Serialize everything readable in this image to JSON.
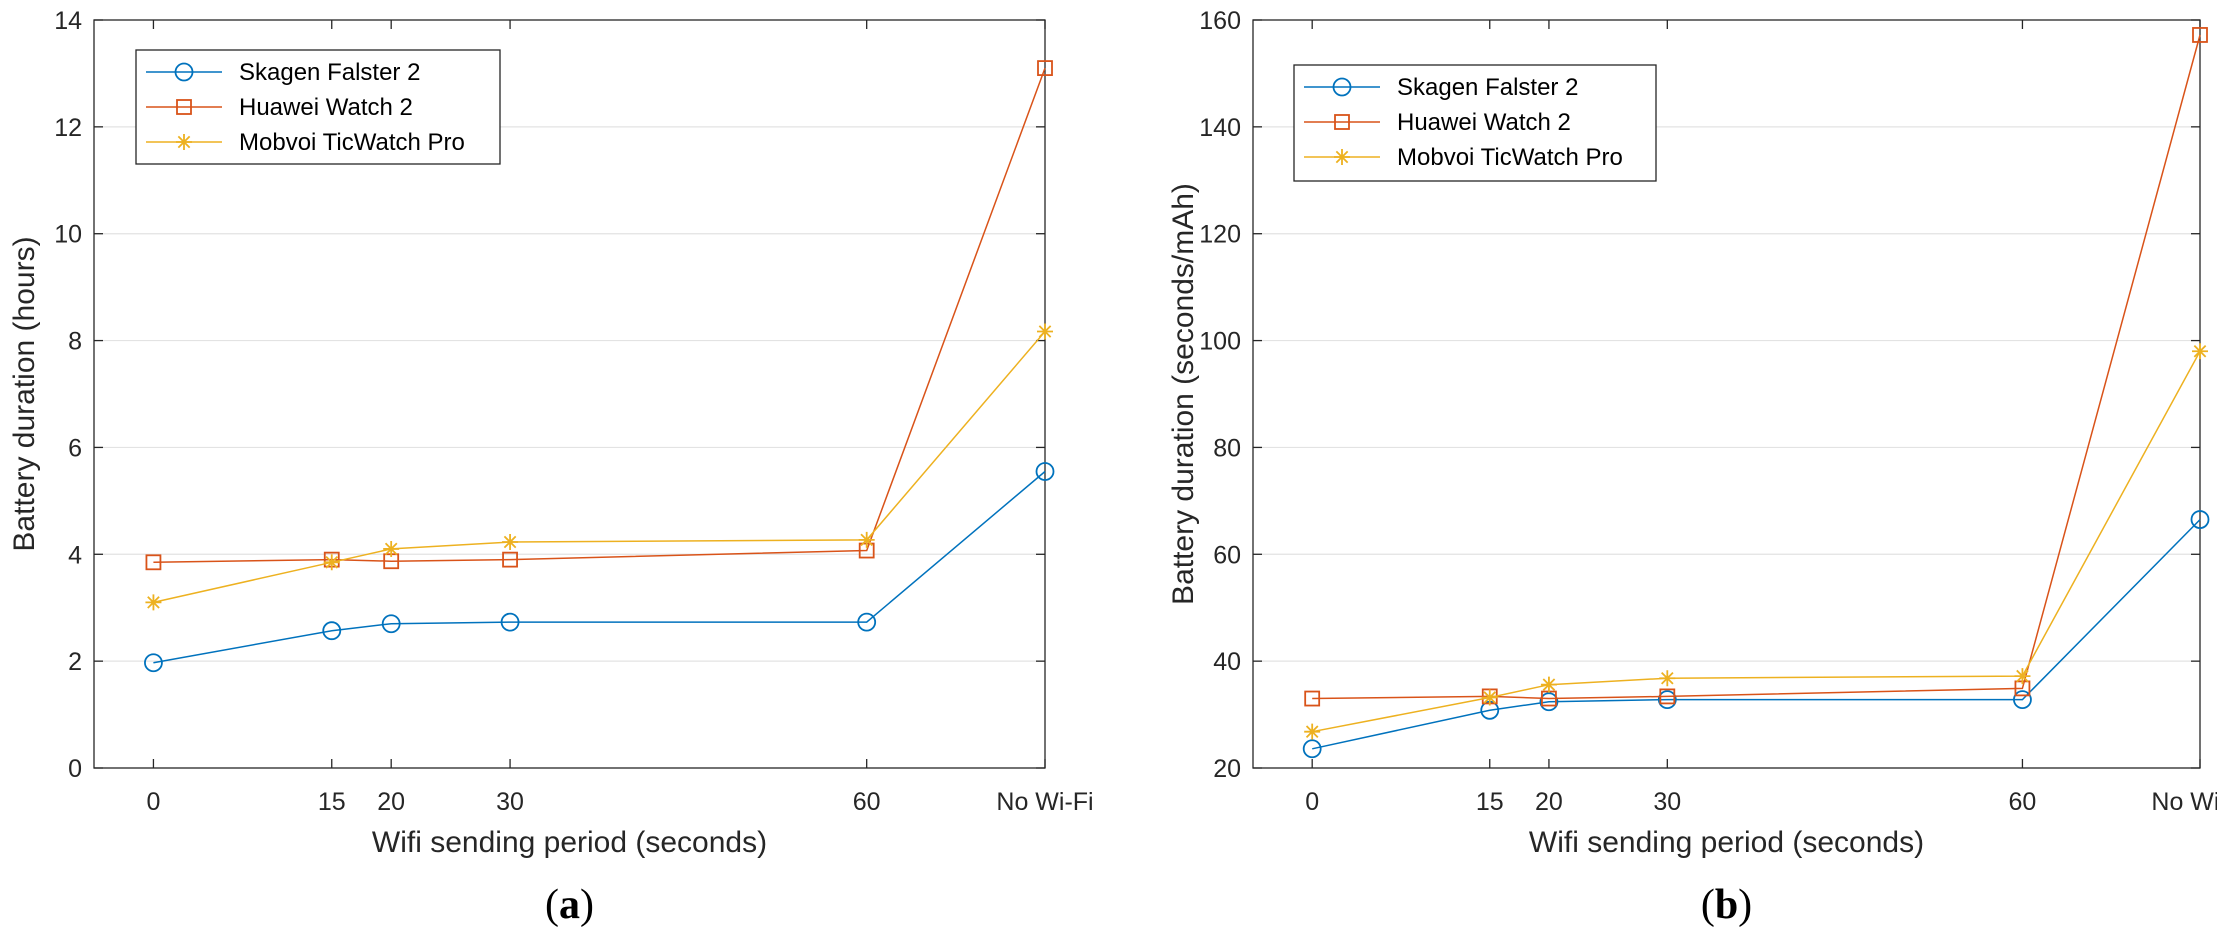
{
  "chart_data": [
    {
      "type": "line",
      "panel_label": {
        "open": "(",
        "letter": "a",
        "close": ")"
      },
      "title": "",
      "xlabel": "Wifi sending period (seconds)",
      "ylabel": "Battery duration (hours)",
      "x": [
        0,
        15,
        20,
        30,
        60,
        75
      ],
      "xtick_values": [
        0,
        15,
        20,
        30,
        60,
        75
      ],
      "xtick_labels": [
        "0",
        "15",
        "20",
        "30",
        "60",
        "No Wi-Fi"
      ],
      "xlim": [
        -5,
        75
      ],
      "ylim": [
        0,
        14
      ],
      "yticks": [
        0,
        2,
        4,
        6,
        8,
        10,
        12,
        14
      ],
      "ytick_labels": [
        "0",
        "2",
        "4",
        "6",
        "8",
        "10",
        "12",
        "14"
      ],
      "grid": true,
      "legend_position": "top-left",
      "series": [
        {
          "name": "Skagen Falster 2",
          "color": "#0072BD",
          "marker": "circle",
          "values": [
            1.97,
            2.57,
            2.7,
            2.73,
            2.73,
            5.55
          ]
        },
        {
          "name": "Huawei Watch 2",
          "color": "#D95319",
          "marker": "square",
          "values": [
            3.85,
            3.9,
            3.87,
            3.9,
            4.07,
            13.1
          ]
        },
        {
          "name": "Mobvoi TicWatch Pro",
          "color": "#EDB120",
          "marker": "asterisk",
          "values": [
            3.1,
            3.85,
            4.1,
            4.23,
            4.27,
            8.17
          ]
        }
      ]
    },
    {
      "type": "line",
      "panel_label": {
        "open": "(",
        "letter": "b",
        "close": ")"
      },
      "title": "",
      "xlabel": "Wifi sending period (seconds)",
      "ylabel": "Battery duration (seconds/mAh)",
      "x": [
        0,
        15,
        20,
        30,
        60,
        75
      ],
      "xtick_values": [
        0,
        15,
        20,
        30,
        60,
        75
      ],
      "xtick_labels": [
        "0",
        "15",
        "20",
        "30",
        "60",
        "No Wi-Fi"
      ],
      "xlim": [
        -5,
        75
      ],
      "ylim": [
        20,
        160
      ],
      "yticks": [
        20,
        40,
        60,
        80,
        100,
        120,
        140,
        160
      ],
      "ytick_labels": [
        "20",
        "40",
        "60",
        "80",
        "100",
        "120",
        "140",
        "160"
      ],
      "grid": true,
      "legend_position": "top-left",
      "series": [
        {
          "name": "Skagen Falster 2",
          "color": "#0072BD",
          "marker": "circle",
          "values": [
            23.6,
            30.8,
            32.4,
            32.8,
            32.8,
            66.5
          ]
        },
        {
          "name": "Huawei Watch 2",
          "color": "#D95319",
          "marker": "square",
          "values": [
            33.0,
            33.4,
            33.0,
            33.4,
            34.9,
            157.2
          ]
        },
        {
          "name": "Mobvoi TicWatch Pro",
          "color": "#EDB120",
          "marker": "asterisk",
          "values": [
            26.8,
            33.2,
            35.6,
            36.8,
            37.2,
            98.0
          ]
        }
      ]
    }
  ]
}
